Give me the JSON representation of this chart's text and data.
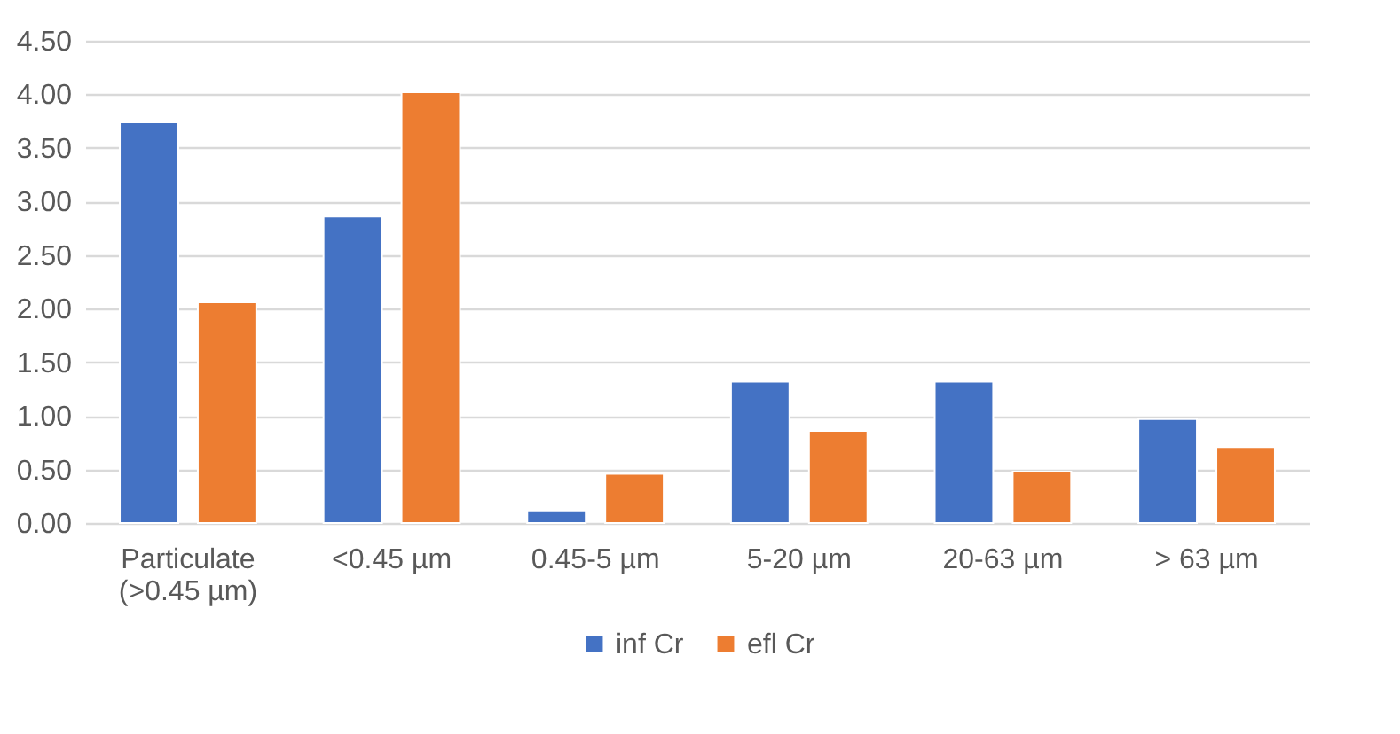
{
  "chart_data": {
    "type": "bar",
    "categories": [
      "Particulate (>0.45 µm)",
      "<0.45 µm",
      "0.45-5 µm",
      "5-20 µm",
      "20-63 µm",
      "> 63 µm"
    ],
    "series": [
      {
        "name": "inf Cr",
        "color": "#4472c4",
        "values": [
          3.74,
          2.86,
          0.11,
          1.32,
          1.32,
          0.97
        ]
      },
      {
        "name": "efl Cr",
        "color": "#ed7d31",
        "values": [
          2.06,
          4.02,
          0.46,
          0.86,
          0.48,
          0.71
        ]
      }
    ],
    "ylim": [
      0,
      4.5
    ],
    "yticks": [
      {
        "value": 0,
        "label": "0.00"
      },
      {
        "value": 0.5,
        "label": "0.50"
      },
      {
        "value": 1,
        "label": "1.00"
      },
      {
        "value": 1.5,
        "label": "1.50"
      },
      {
        "value": 2,
        "label": "2.00"
      },
      {
        "value": 2.5,
        "label": "2.50"
      },
      {
        "value": 3,
        "label": "3.00"
      },
      {
        "value": 3.5,
        "label": "3.50"
      },
      {
        "value": 4,
        "label": "4.00"
      },
      {
        "value": 4.5,
        "label": "4.50"
      }
    ],
    "grid": "y",
    "legend": "bottom"
  }
}
